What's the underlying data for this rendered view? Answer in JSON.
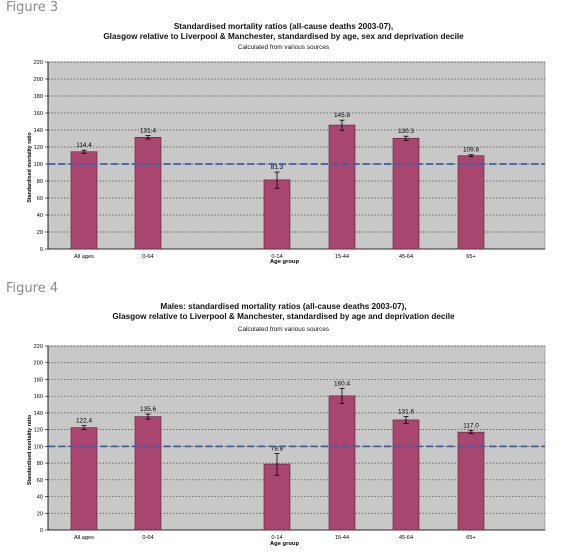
{
  "figures": [
    {
      "label": "Figure 3",
      "title_line1": "Standardised mortality ratios (all-cause deaths 2003-07),",
      "title_line2": "Glasgow relative to Liverpool & Manchester, standardised by age, sex and deprivation decile",
      "subtitle": "Calculated from various sources"
    },
    {
      "label": "Figure 4",
      "title_line1": "Males: standardised mortality ratios (all-cause deaths 2003-07),",
      "title_line2": "Glasgow relative to Liverpool & Manchester, standardised by age and deprivation decile",
      "subtitle": "Calculated from various sources"
    }
  ],
  "colors": {
    "bar": "#a8466f",
    "bar_border": "#5a1f3a",
    "plot_bg": "#c8c8c8",
    "reference_line": "#3d5fa8",
    "grid": "#555555"
  },
  "chart_data": [
    {
      "type": "bar",
      "title": "Standardised mortality ratios (all-cause deaths 2003-07), Glasgow relative to Liverpool & Manchester, standardised by age, sex and deprivation decile",
      "subtitle": "Calculated from various sources",
      "xlabel": "Age group",
      "ylabel": "Standardised mortality ratio",
      "ylim": [
        0,
        220
      ],
      "yticks": [
        0,
        20,
        40,
        60,
        80,
        100,
        120,
        140,
        160,
        180,
        200,
        220
      ],
      "categories": [
        "All ages",
        "0-64",
        "",
        "0-14",
        "15-44",
        "45-64",
        "65+"
      ],
      "values": [
        114.4,
        131.4,
        null,
        81.3,
        145.8,
        130.3,
        109.8
      ],
      "value_labels": [
        "114.4",
        "131.4",
        "",
        "81.3",
        "145.8",
        "130.3",
        "109.8"
      ],
      "error_low": [
        112.6,
        129.4,
        null,
        71.5,
        139.8,
        127.9,
        108.6
      ],
      "error_high": [
        116.2,
        133.4,
        null,
        90.5,
        151.6,
        132.7,
        111.0
      ],
      "reference_line": 100,
      "grid": true
    },
    {
      "type": "bar",
      "title": "Males: standardised mortality ratios (all-cause deaths 2003-07), Glasgow relative to Liverpool & Manchester, standardised by age and deprivation decile",
      "subtitle": "Calculated from various sources",
      "xlabel": "Age group",
      "ylabel": "Standardised mortality ratio",
      "ylim": [
        0,
        220
      ],
      "yticks": [
        0,
        20,
        40,
        60,
        80,
        100,
        120,
        140,
        160,
        180,
        200,
        220
      ],
      "categories": [
        "All ages",
        "0-64",
        "",
        "0-14",
        "15-44",
        "45-64",
        "65+"
      ],
      "values": [
        122.4,
        135.6,
        null,
        78.8,
        160.4,
        131.6,
        117.0
      ],
      "value_labels": [
        "122.4",
        "135.6",
        "",
        "78.8",
        "160.4",
        "131.6",
        "117.0"
      ],
      "error_low": [
        120.0,
        132.6,
        null,
        65.5,
        151.4,
        127.6,
        115.2
      ],
      "error_high": [
        124.8,
        138.6,
        null,
        91.5,
        169.4,
        135.6,
        118.8
      ],
      "reference_line": 100,
      "grid": true
    }
  ]
}
